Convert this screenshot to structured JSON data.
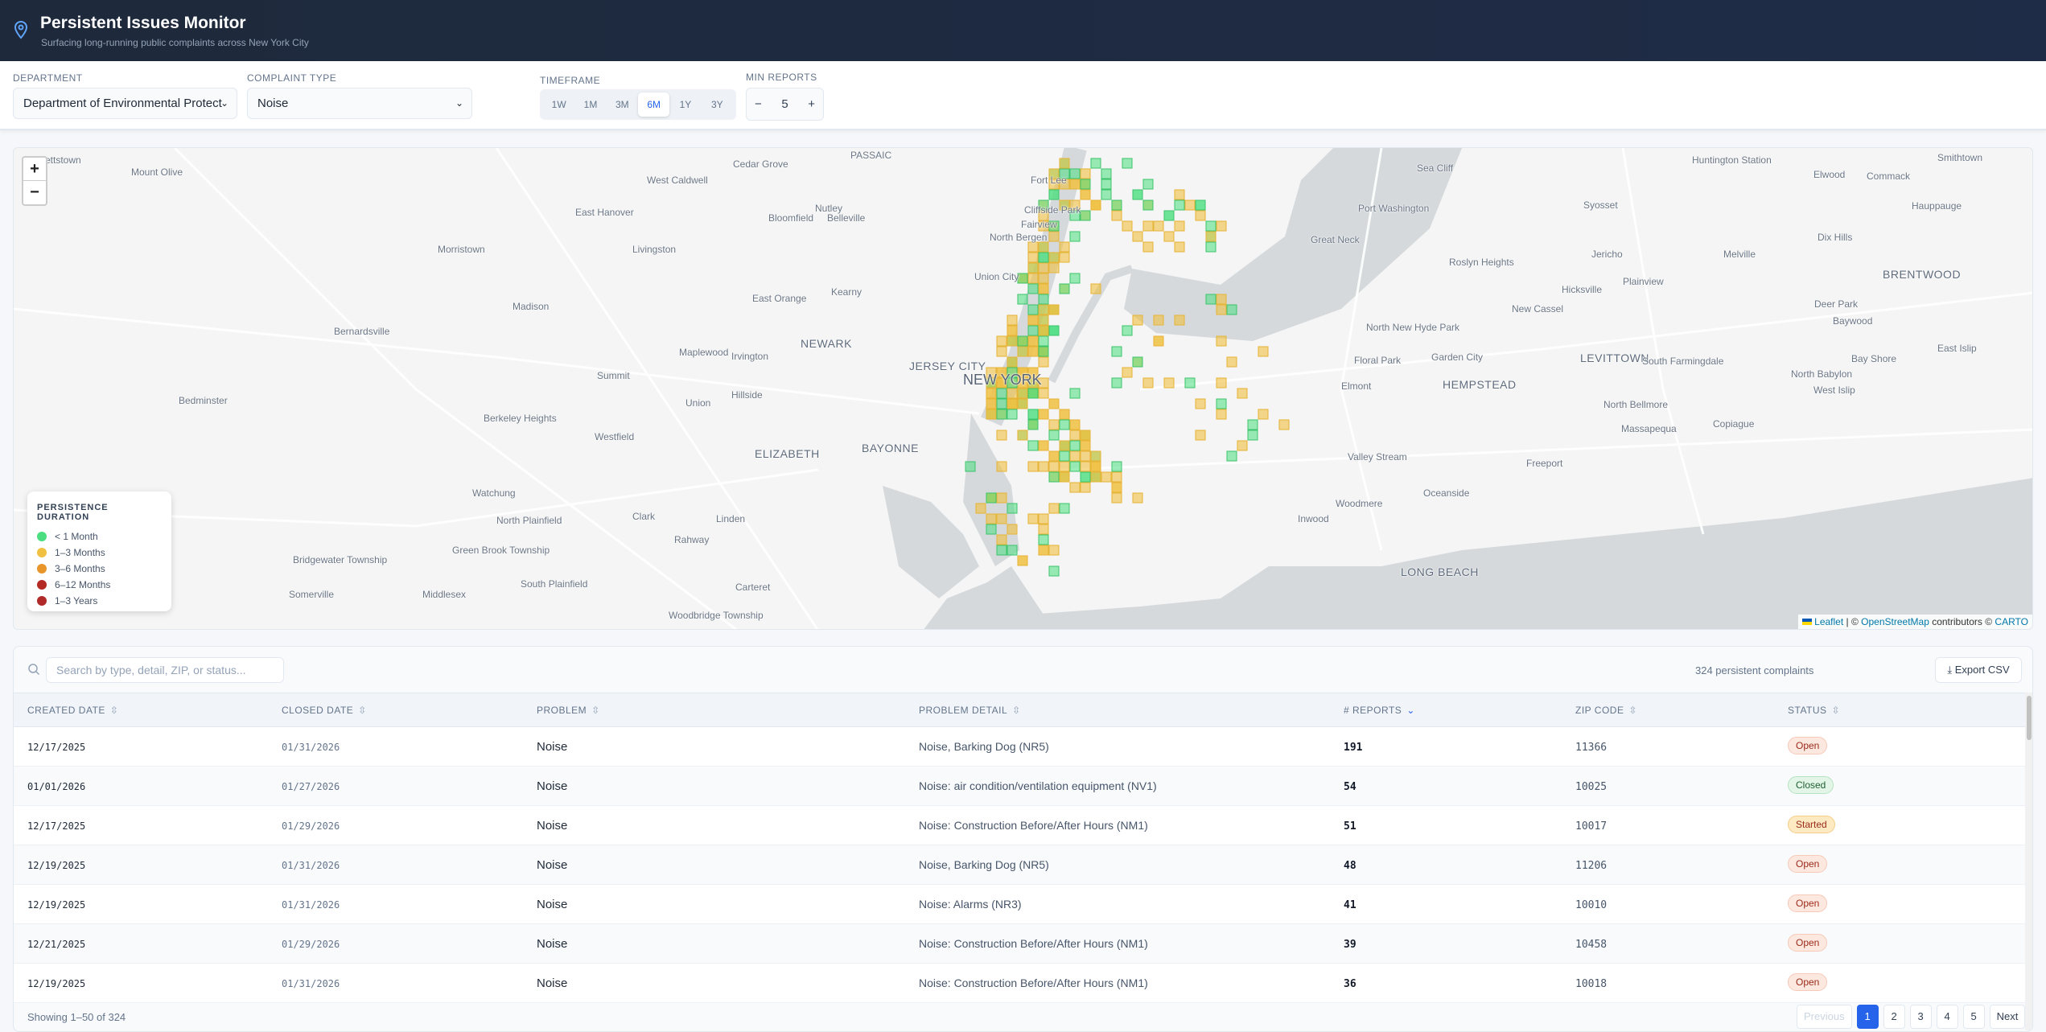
{
  "header": {
    "title": "Persistent Issues Monitor",
    "subtitle": "Surfacing long-running public complaints across New York City"
  },
  "filters": {
    "department": {
      "label": "DEPARTMENT",
      "value": "Department of Environmental Protect"
    },
    "complaint_type": {
      "label": "COMPLAINT TYPE",
      "value": "Noise"
    },
    "timeframe": {
      "label": "TIMEFRAME",
      "options": [
        "1W",
        "1M",
        "3M",
        "6M",
        "1Y",
        "3Y"
      ],
      "selected": "6M"
    },
    "min_reports": {
      "label": "MIN REPORTS",
      "value": "5",
      "minus": "−",
      "plus": "+"
    }
  },
  "map": {
    "zoom_in": "+",
    "zoom_out": "−",
    "labels": [
      "kettstown",
      "Mount Olive",
      "West Caldwell",
      "Cedar Grove",
      "PASSAIC",
      "Nutley",
      "East Hanover",
      "Cliffside Park",
      "Fairview",
      "North Bergen",
      "Morristown",
      "Livingston",
      "Bloomfield",
      "Belleville",
      "Union City",
      "Kearny",
      "East Orange",
      "Madison",
      "Port Washington",
      "Great Neck",
      "Roslyn Heights",
      "Sea Cliff",
      "Syosset",
      "Jericho",
      "Hicksville",
      "Plainview",
      "Huntington Station",
      "Elwood",
      "Commack",
      "Smithtown",
      "Hauppauge",
      "Melville",
      "Dix Hills",
      "BRENTWOOD",
      "Deer Park",
      "Baywood",
      "New Cassel",
      "Bernardsville",
      "Maplewood",
      "Irvington",
      "NEWARK",
      "Summit",
      "JERSEY CITY",
      "NEW YORK",
      "North New Hyde Park",
      "Floral Park",
      "Garden City",
      "LEVITTOWN",
      "South Farmingdale",
      "North Babylon",
      "Bay Shore",
      "East Islip",
      "West Islip",
      "HEMPSTEAD",
      "Elmont",
      "Bedminster",
      "Berkeley Heights",
      "Union",
      "Hillside",
      "North Bellmore",
      "Massapequa",
      "Copiague",
      "Westfield",
      "ELIZABETH",
      "BAYONNE",
      "Valley Stream",
      "Freeport",
      "Watchung",
      "Woodmere",
      "Oceanside",
      "North Plainfield",
      "Clark",
      "Linden",
      "Rahway",
      "Inwood",
      "Green Brook Township",
      "Bridgewater Township",
      "South Plainfield",
      "Somerville",
      "Middlesex",
      "Carteret",
      "Woodbridge Township",
      "LONG BEACH",
      "Fort Lee"
    ],
    "legend": {
      "title": "PERSISTENCE DURATION",
      "items": [
        {
          "label": "< 1 Month",
          "color": "#4ade80"
        },
        {
          "label": "1–3 Months",
          "color": "#f0c040"
        },
        {
          "label": "3–6 Months",
          "color": "#e8952a"
        },
        {
          "label": "6–12 Months",
          "color": "#b42b25"
        },
        {
          "label": "1–3 Years",
          "color": "#b02a2a"
        }
      ]
    },
    "attribution": {
      "leaflet": "Leaflet",
      "sep1": " | © ",
      "osm": "OpenStreetMap",
      "mid": " contributors © ",
      "carto": "CARTO"
    }
  },
  "table": {
    "search_placeholder": "Search by type, detail, ZIP, or status...",
    "count": "324 persistent complaints",
    "export_label": "Export CSV",
    "columns": [
      "CREATED DATE",
      "CLOSED DATE",
      "PROBLEM",
      "PROBLEM DETAIL",
      "# REPORTS",
      "ZIP CODE",
      "STATUS"
    ],
    "rows": [
      {
        "created": "12/17/2025",
        "closed": "01/31/2026",
        "problem": "Noise",
        "detail": "Noise, Barking Dog (NR5)",
        "reports": "191",
        "zip": "11366",
        "status": "Open"
      },
      {
        "created": "01/01/2026",
        "closed": "01/27/2026",
        "problem": "Noise",
        "detail": "Noise: air condition/ventilation equipment (NV1)",
        "reports": "54",
        "zip": "10025",
        "status": "Closed"
      },
      {
        "created": "12/17/2025",
        "closed": "01/29/2026",
        "problem": "Noise",
        "detail": "Noise: Construction Before/After Hours (NM1)",
        "reports": "51",
        "zip": "10017",
        "status": "Started"
      },
      {
        "created": "12/19/2025",
        "closed": "01/31/2026",
        "problem": "Noise",
        "detail": "Noise, Barking Dog (NR5)",
        "reports": "48",
        "zip": "11206",
        "status": "Open"
      },
      {
        "created": "12/19/2025",
        "closed": "01/31/2026",
        "problem": "Noise",
        "detail": "Noise: Alarms (NR3)",
        "reports": "41",
        "zip": "10010",
        "status": "Open"
      },
      {
        "created": "12/21/2025",
        "closed": "01/29/2026",
        "problem": "Noise",
        "detail": "Noise: Construction Before/After Hours (NM1)",
        "reports": "39",
        "zip": "10458",
        "status": "Open"
      },
      {
        "created": "12/19/2025",
        "closed": "01/31/2026",
        "problem": "Noise",
        "detail": "Noise: Construction Before/After Hours (NM1)",
        "reports": "36",
        "zip": "10018",
        "status": "Open"
      }
    ],
    "showing": "Showing 1–50 of 324",
    "pagination": {
      "previous": "Previous",
      "pages": [
        "1",
        "2",
        "3",
        "4",
        "5"
      ],
      "current": "1",
      "next": "Next"
    }
  }
}
